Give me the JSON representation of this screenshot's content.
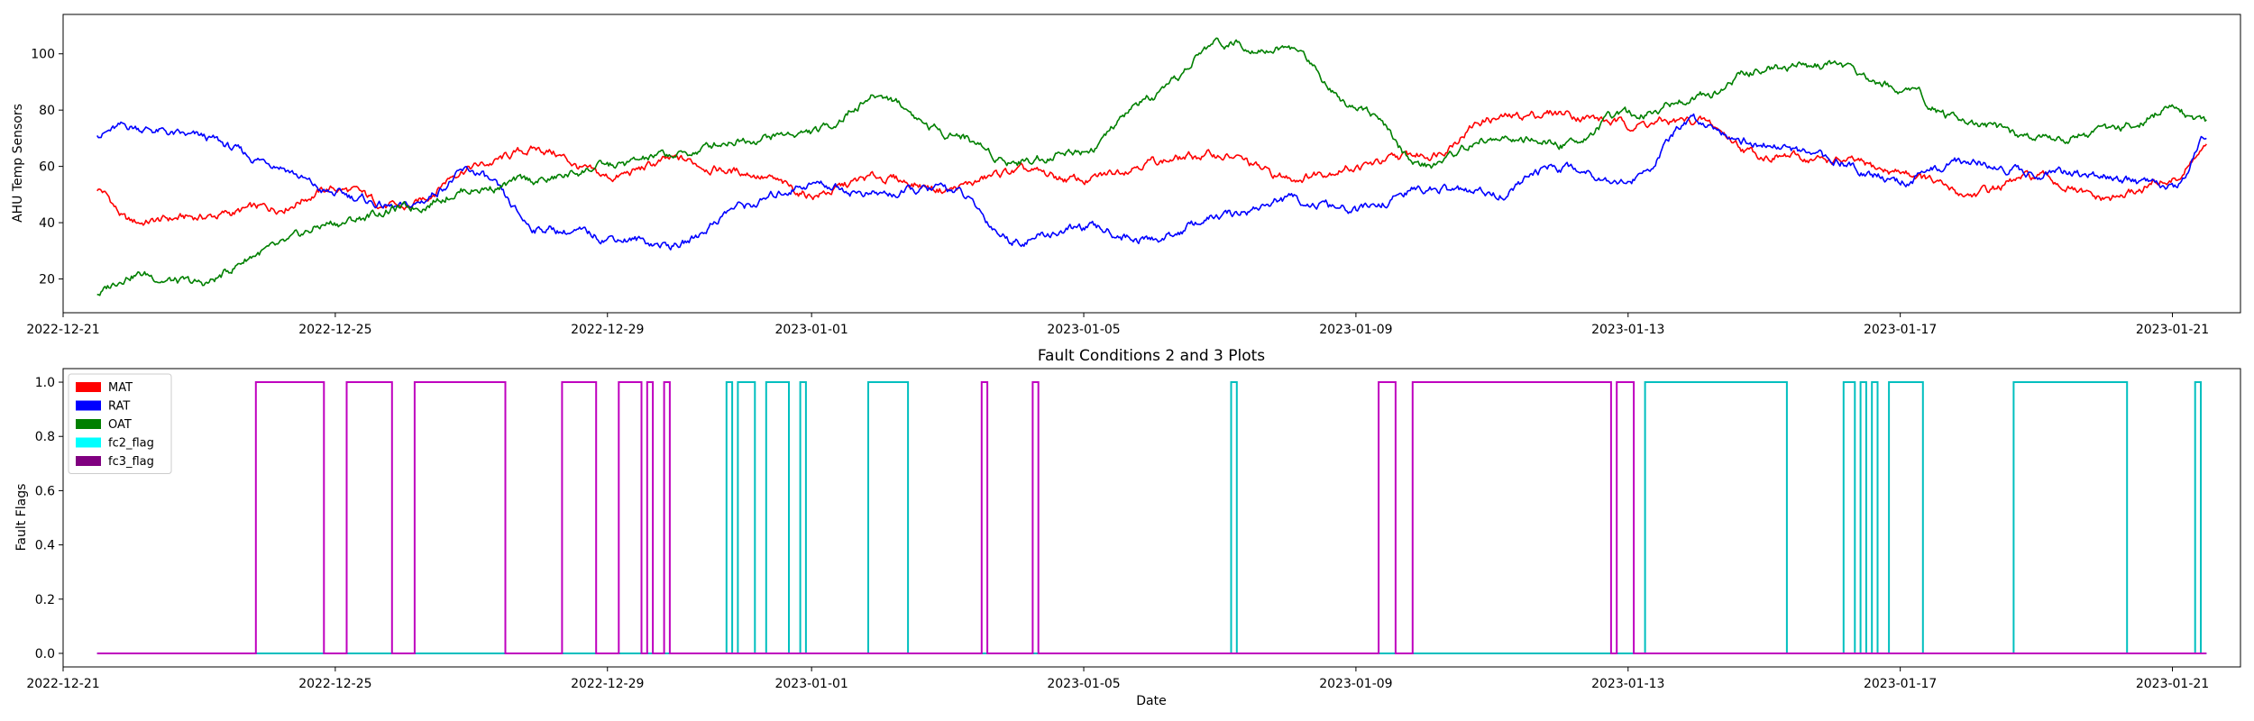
{
  "chart_data": [
    {
      "type": "line",
      "title": "",
      "xlabel": "",
      "ylabel": "AHU Temp Sensors",
      "x_range": [
        "2022-12-21",
        "2023-01-22"
      ],
      "ylim": [
        8,
        114
      ],
      "y_ticks": [
        20,
        40,
        60,
        80,
        100
      ],
      "x_ticks": [
        "2022-12-21",
        "2022-12-25",
        "2022-12-29",
        "2023-01-01",
        "2023-01-05",
        "2023-01-09",
        "2023-01-13",
        "2023-01-17",
        "2023-01-21"
      ],
      "grid": false,
      "series": [
        {
          "name": "MAT",
          "color": "#ff0000",
          "x": [
            "2022-12-21T12:00",
            "2022-12-22",
            "2022-12-23",
            "2022-12-24",
            "2022-12-25",
            "2022-12-26",
            "2022-12-27",
            "2022-12-28",
            "2022-12-29",
            "2022-12-30",
            "2022-12-31",
            "2023-01-01",
            "2023-01-02",
            "2023-01-03",
            "2023-01-04",
            "2023-01-05",
            "2023-01-06",
            "2023-01-07",
            "2023-01-08",
            "2023-01-09",
            "2023-01-10",
            "2023-01-11",
            "2023-01-12",
            "2023-01-13",
            "2023-01-14",
            "2023-01-15",
            "2023-01-16",
            "2023-01-17",
            "2023-01-18",
            "2023-01-19",
            "2023-01-20",
            "2023-01-21",
            "2023-01-21T12:00"
          ],
          "values": [
            52,
            40,
            42,
            45,
            52,
            45,
            60,
            66,
            56,
            62,
            58,
            50,
            56,
            52,
            58,
            55,
            62,
            64,
            56,
            60,
            64,
            77,
            79,
            75,
            76,
            64,
            62,
            58,
            50,
            56,
            48,
            55,
            66
          ]
        },
        {
          "name": "RAT",
          "color": "#0000ff",
          "x": [
            "2022-12-21T12:00",
            "2022-12-22",
            "2022-12-23",
            "2022-12-24",
            "2022-12-25",
            "2022-12-26",
            "2022-12-27",
            "2022-12-28",
            "2022-12-29",
            "2022-12-30",
            "2022-12-31",
            "2023-01-01",
            "2023-01-02",
            "2023-01-03",
            "2023-01-04",
            "2023-01-05",
            "2023-01-06",
            "2023-01-07",
            "2023-01-08",
            "2023-01-09",
            "2023-01-10",
            "2023-01-11",
            "2023-01-12",
            "2023-01-13",
            "2023-01-14",
            "2023-01-15",
            "2023-01-16",
            "2023-01-17",
            "2023-01-18",
            "2023-01-19",
            "2023-01-20",
            "2023-01-21",
            "2023-01-21T12:00"
          ],
          "values": [
            72,
            74,
            70,
            62,
            50,
            45,
            58,
            38,
            35,
            32,
            46,
            54,
            50,
            52,
            34,
            38,
            34,
            42,
            48,
            44,
            52,
            50,
            60,
            55,
            76,
            68,
            62,
            55,
            62,
            58,
            56,
            52,
            70
          ]
        },
        {
          "name": "OAT",
          "color": "#008000",
          "x": [
            "2022-12-21T12:00",
            "2022-12-22",
            "2022-12-23",
            "2022-12-24",
            "2022-12-25",
            "2022-12-26",
            "2022-12-27",
            "2022-12-28",
            "2022-12-29",
            "2022-12-30",
            "2022-12-31",
            "2023-01-01",
            "2023-01-02",
            "2023-01-03",
            "2023-01-04",
            "2023-01-05",
            "2023-01-06",
            "2023-01-07",
            "2023-01-08",
            "2023-01-09",
            "2023-01-10",
            "2023-01-11",
            "2023-01-12",
            "2023-01-13",
            "2023-01-14",
            "2023-01-15",
            "2023-01-16",
            "2023-01-17",
            "2023-01-18",
            "2023-01-19",
            "2023-01-20",
            "2023-01-21",
            "2023-01-21T12:00"
          ],
          "values": [
            15,
            22,
            18,
            30,
            40,
            45,
            52,
            55,
            60,
            64,
            70,
            72,
            85,
            72,
            62,
            66,
            84,
            104,
            102,
            82,
            60,
            70,
            68,
            78,
            85,
            95,
            96,
            88,
            75,
            70,
            72,
            80,
            75
          ]
        }
      ]
    },
    {
      "type": "line",
      "step": true,
      "title": "Fault Conditions 2 and 3 Plots",
      "xlabel": "Date",
      "ylabel": "Fault Flags",
      "x_range": [
        "2022-12-21",
        "2023-01-22"
      ],
      "ylim": [
        -0.05,
        1.05
      ],
      "y_ticks": [
        0.0,
        0.2,
        0.4,
        0.6,
        0.8,
        1.0
      ],
      "y_tick_labels": [
        "0.0",
        "0.2",
        "0.4",
        "0.6",
        "0.8",
        "1.0"
      ],
      "x_ticks": [
        "2022-12-21",
        "2022-12-25",
        "2022-12-29",
        "2023-01-01",
        "2023-01-05",
        "2023-01-09",
        "2023-01-13",
        "2023-01-17",
        "2023-01-21"
      ],
      "grid": false,
      "legend_position": "upper-left",
      "legend": [
        {
          "label": "MAT",
          "color": "#ff0000"
        },
        {
          "label": "RAT",
          "color": "#0000ff"
        },
        {
          "label": "OAT",
          "color": "#008000"
        },
        {
          "label": "fc2_flag",
          "color": "#00ffff"
        },
        {
          "label": "fc3_flag",
          "color": "#800080"
        }
      ],
      "series": [
        {
          "name": "fc2_flag",
          "color": "#00bfbf",
          "start": "2022-12-21T12:00",
          "end": "2023-01-21T12:00",
          "on_intervals": [
            [
              "2022-12-30T18:00",
              "2022-12-30T20:00"
            ],
            [
              "2022-12-30T22:00",
              "2022-12-31T04:00"
            ],
            [
              "2022-12-31T08:00",
              "2022-12-31T16:00"
            ],
            [
              "2022-12-31T20:00",
              "2022-12-31T22:00"
            ],
            [
              "2023-01-01T20:00",
              "2023-01-02T10:00"
            ],
            [
              "2023-01-07T04:00",
              "2023-01-07T06:00"
            ],
            [
              "2023-01-13T06:00",
              "2023-01-15T08:00"
            ],
            [
              "2023-01-16T04:00",
              "2023-01-16T08:00"
            ],
            [
              "2023-01-16T10:00",
              "2023-01-16T12:00"
            ],
            [
              "2023-01-16T14:00",
              "2023-01-16T16:00"
            ],
            [
              "2023-01-16T20:00",
              "2023-01-17T08:00"
            ],
            [
              "2023-01-18T16:00",
              "2023-01-20T08:00"
            ],
            [
              "2023-01-21T08:00",
              "2023-01-21T10:00"
            ]
          ]
        },
        {
          "name": "fc3_flag",
          "color": "#bf00bf",
          "start": "2022-12-21T12:00",
          "end": "2023-01-21T12:00",
          "on_intervals": [
            [
              "2022-12-23T20:00",
              "2022-12-24T20:00"
            ],
            [
              "2022-12-25T04:00",
              "2022-12-25T20:00"
            ],
            [
              "2022-12-26T04:00",
              "2022-12-27T12:00"
            ],
            [
              "2022-12-28T08:00",
              "2022-12-28T20:00"
            ],
            [
              "2022-12-29T04:00",
              "2022-12-29T12:00"
            ],
            [
              "2022-12-29T14:00",
              "2022-12-29T16:00"
            ],
            [
              "2022-12-29T20:00",
              "2022-12-29T22:00"
            ],
            [
              "2023-01-03T12:00",
              "2023-01-03T14:00"
            ],
            [
              "2023-01-04T06:00",
              "2023-01-04T08:00"
            ],
            [
              "2023-01-09T08:00",
              "2023-01-09T14:00"
            ],
            [
              "2023-01-09T20:00",
              "2023-01-12T18:00"
            ],
            [
              "2023-01-12T20:00",
              "2023-01-13T02:00"
            ]
          ]
        }
      ]
    }
  ]
}
